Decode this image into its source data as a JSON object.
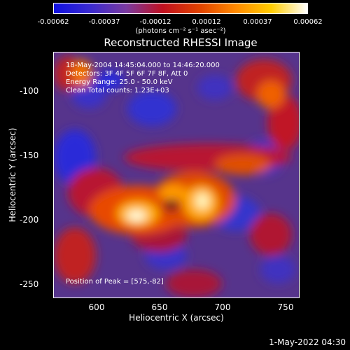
{
  "colorbar": {
    "ticks": [
      "-0.00062",
      "-0.00037",
      "-0.00012",
      "0.00012",
      "0.00037",
      "0.00062"
    ],
    "unit": "(photons cm⁻² s⁻¹ asec⁻²)",
    "colors": [
      "#1010e0",
      "#3a2ad0",
      "#7a3aa0",
      "#c01020",
      "#e04000",
      "#ff8800",
      "#ffcc00",
      "#ffffff"
    ]
  },
  "title": "Reconstructed RHESSI Image",
  "annotations": {
    "time": "18-May-2004 14:45:04.000 to 14:46:20.000",
    "detectors": "Detectors: 3F 4F 5F 6F 7F 8F, Att 0",
    "energy": "Energy Range: 25.0 - 50.0 keV",
    "clean": "Clean     Total counts: 1.23E+03",
    "peak": "Position of Peak = [575,-82]"
  },
  "axes": {
    "xlabel": "Heliocentric X (arcsec)",
    "ylabel": "Heliocentric Y (arcsec)",
    "xticks": [
      "600",
      "650",
      "700",
      "750"
    ],
    "yticks": [
      "-100",
      "-150",
      "-200",
      "-250"
    ]
  },
  "footer": "1-May-2022 04:30"
}
